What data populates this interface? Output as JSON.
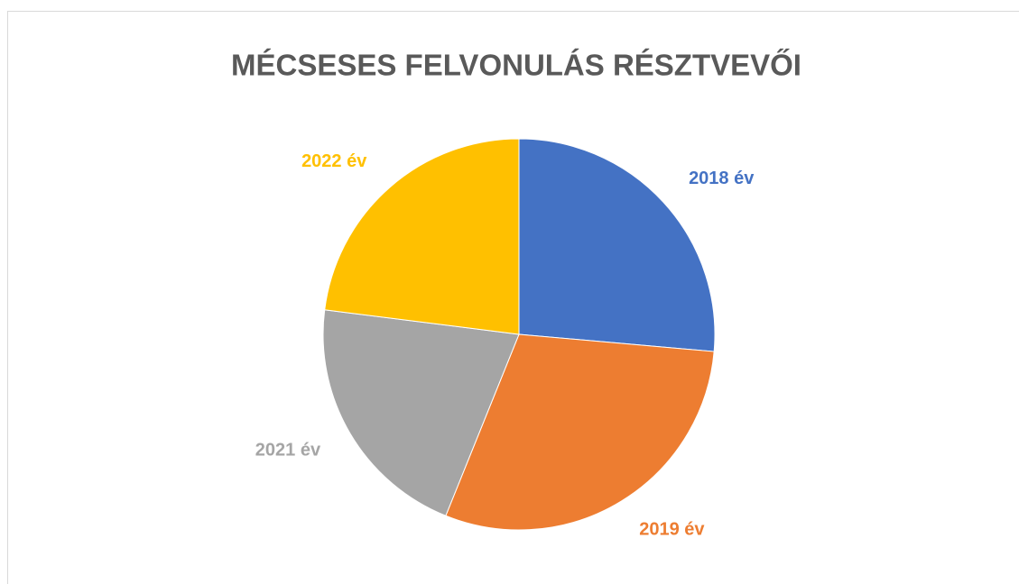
{
  "chart_data": {
    "type": "pie",
    "title": "MÉCSESES FELVONULÁS RÉSZTVEVŐI",
    "categories": [
      "2018 év",
      "2019 év",
      "2021 év",
      "2022 év"
    ],
    "values": [
      26.4,
      29.7,
      20.9,
      23.0
    ],
    "colors": [
      "#4472c4",
      "#ed7d31",
      "#a5a5a5",
      "#ffc000"
    ]
  }
}
